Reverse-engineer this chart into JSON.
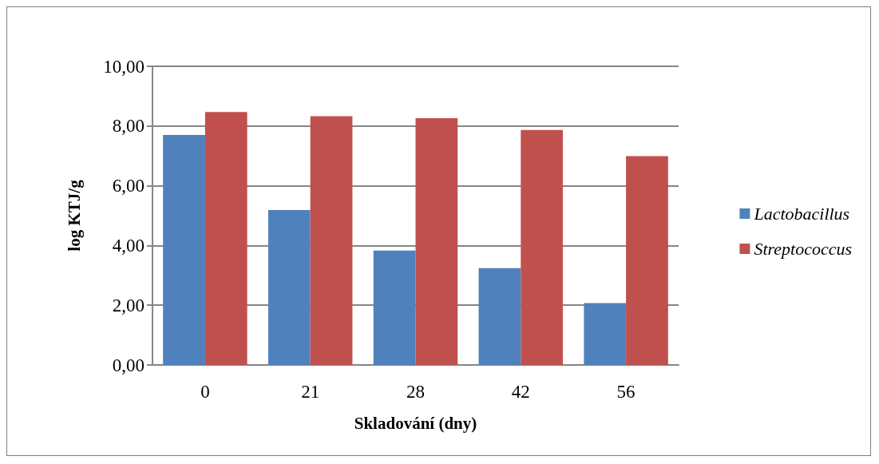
{
  "chart_data": {
    "type": "bar",
    "xlabel": "Skladování (dny)",
    "ylabel": "log KTJ/g",
    "categories": [
      "0",
      "21",
      "28",
      "42",
      "56"
    ],
    "series": [
      {
        "name": "Lactobacillus",
        "color": "#4f81bd",
        "values": [
          7.7,
          5.19,
          3.83,
          3.24,
          2.07
        ]
      },
      {
        "name": "Streptococcus",
        "color": "#c0504d",
        "values": [
          8.47,
          8.33,
          8.26,
          7.87,
          6.99
        ]
      }
    ],
    "ylim": [
      0,
      10
    ],
    "yticks": [
      {
        "value": 0,
        "label": "0,00"
      },
      {
        "value": 2,
        "label": "2,00"
      },
      {
        "value": 4,
        "label": "4,00"
      },
      {
        "value": 6,
        "label": "6,00"
      },
      {
        "value": 8,
        "label": "8,00"
      },
      {
        "value": 10,
        "label": "10,00"
      }
    ],
    "grid": true,
    "legend": "right"
  }
}
